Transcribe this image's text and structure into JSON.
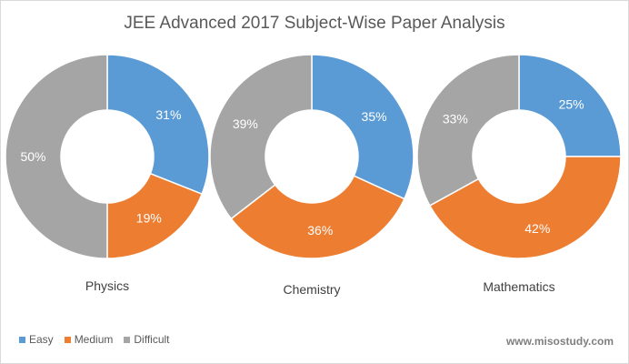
{
  "title": "JEE Advanced 2017 Subject-Wise Paper Analysis",
  "watermark": "www.misostudy.com",
  "colors": {
    "easy": "#5b9bd5",
    "medium": "#ed7d31",
    "difficult": "#a5a5a5"
  },
  "legend": [
    {
      "label": "Easy",
      "color": "#5b9bd5"
    },
    {
      "label": "Medium",
      "color": "#ed7d31"
    },
    {
      "label": "Difficult",
      "color": "#a5a5a5"
    }
  ],
  "chart_data": [
    {
      "type": "pie",
      "title": "Physics",
      "categories": [
        "Easy",
        "Medium",
        "Difficult"
      ],
      "values": [
        31,
        19,
        50
      ],
      "labels": [
        "31%",
        "19%",
        "50%"
      ]
    },
    {
      "type": "pie",
      "title": "Chemistry",
      "categories": [
        "Easy",
        "Medium",
        "Difficult"
      ],
      "values": [
        35,
        36,
        39
      ],
      "labels": [
        "35%",
        "36%",
        "39%"
      ]
    },
    {
      "type": "pie",
      "title": "Mathematics",
      "categories": [
        "Easy",
        "Medium",
        "Difficult"
      ],
      "values": [
        25,
        42,
        33
      ],
      "labels": [
        "25%",
        "42%",
        "33%"
      ]
    }
  ]
}
